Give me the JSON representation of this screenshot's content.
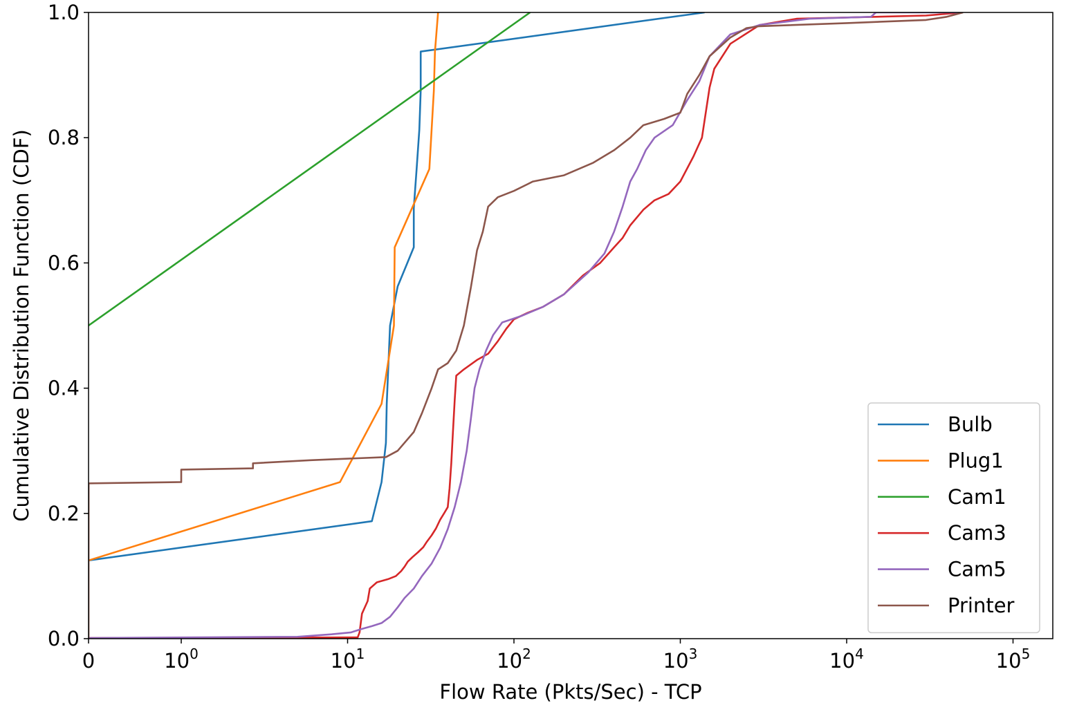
{
  "chart_data": {
    "type": "line",
    "subtype": "cdf",
    "xlabel": "Flow Rate (Pkts/Sec) - TCP",
    "ylabel": "Cumulative Distribution Function (CDF)",
    "xscale": "symlog",
    "xlim": [
      0,
      100000
    ],
    "ylim": [
      0,
      1.0
    ],
    "xticks": [
      {
        "value": 0,
        "base": "0",
        "exp": ""
      },
      {
        "value": 1,
        "base": "10",
        "exp": "0"
      },
      {
        "value": 10,
        "base": "10",
        "exp": "1"
      },
      {
        "value": 100,
        "base": "10",
        "exp": "2"
      },
      {
        "value": 1000,
        "base": "10",
        "exp": "3"
      },
      {
        "value": 10000,
        "base": "10",
        "exp": "4"
      },
      {
        "value": 100000,
        "base": "10",
        "exp": "5"
      }
    ],
    "yticks": [
      {
        "value": 0.0,
        "label": "0.0"
      },
      {
        "value": 0.2,
        "label": "0.2"
      },
      {
        "value": 0.4,
        "label": "0.4"
      },
      {
        "value": 0.6,
        "label": "0.6"
      },
      {
        "value": 0.8,
        "label": "0.8"
      },
      {
        "value": 1.0,
        "label": "1.0"
      }
    ],
    "grid": false,
    "legend_position": "lower-right",
    "series": [
      {
        "name": "Bulb",
        "color": "#1f77b4",
        "points": [
          [
            0,
            0.125
          ],
          [
            14,
            0.1875
          ],
          [
            16,
            0.25
          ],
          [
            17,
            0.3125
          ],
          [
            17.2,
            0.375
          ],
          [
            17.6,
            0.4375
          ],
          [
            18,
            0.5
          ],
          [
            20,
            0.5625
          ],
          [
            25,
            0.625
          ],
          [
            25,
            0.6875
          ],
          [
            26,
            0.75
          ],
          [
            27,
            0.8125
          ],
          [
            27.5,
            0.875
          ],
          [
            27.5,
            0.9375
          ],
          [
            1400,
            1.0
          ]
        ]
      },
      {
        "name": "Plug1",
        "color": "#ff7f0e",
        "points": [
          [
            0,
            0.125
          ],
          [
            9,
            0.25
          ],
          [
            16,
            0.375
          ],
          [
            19,
            0.5
          ],
          [
            19.2,
            0.625
          ],
          [
            31,
            0.75
          ],
          [
            33,
            0.875
          ],
          [
            33.5,
            0.9375
          ],
          [
            35,
            1.0
          ]
        ]
      },
      {
        "name": "Cam1",
        "color": "#2ca02c",
        "points": [
          [
            0,
            0.5
          ],
          [
            125,
            1.0
          ]
        ]
      },
      {
        "name": "Cam3",
        "color": "#d62728",
        "points": [
          [
            0,
            0.001
          ],
          [
            11.5,
            0.002
          ],
          [
            11.8,
            0.01
          ],
          [
            12.2,
            0.04
          ],
          [
            13.2,
            0.06
          ],
          [
            13.6,
            0.08
          ],
          [
            15,
            0.09
          ],
          [
            17.5,
            0.095
          ],
          [
            19.5,
            0.1
          ],
          [
            21,
            0.108
          ],
          [
            22,
            0.115
          ],
          [
            23,
            0.123
          ],
          [
            24.5,
            0.13
          ],
          [
            26.5,
            0.138
          ],
          [
            28.5,
            0.146
          ],
          [
            30,
            0.155
          ],
          [
            32,
            0.165
          ],
          [
            34,
            0.176
          ],
          [
            36,
            0.19
          ],
          [
            38,
            0.2
          ],
          [
            40,
            0.21
          ],
          [
            41,
            0.24
          ],
          [
            42,
            0.28
          ],
          [
            43,
            0.33
          ],
          [
            44,
            0.38
          ],
          [
            45,
            0.42
          ],
          [
            50,
            0.43
          ],
          [
            60,
            0.445
          ],
          [
            70,
            0.455
          ],
          [
            80,
            0.475
          ],
          [
            90,
            0.495
          ],
          [
            100,
            0.51
          ],
          [
            120,
            0.52
          ],
          [
            150,
            0.53
          ],
          [
            200,
            0.55
          ],
          [
            260,
            0.58
          ],
          [
            330,
            0.6
          ],
          [
            400,
            0.625
          ],
          [
            450,
            0.64
          ],
          [
            500,
            0.66
          ],
          [
            600,
            0.685
          ],
          [
            700,
            0.7
          ],
          [
            850,
            0.71
          ],
          [
            1000,
            0.73
          ],
          [
            1200,
            0.77
          ],
          [
            1350,
            0.8
          ],
          [
            1500,
            0.88
          ],
          [
            1600,
            0.91
          ],
          [
            2000,
            0.95
          ],
          [
            3000,
            0.98
          ],
          [
            5000,
            0.99
          ],
          [
            15000,
            0.993
          ],
          [
            30000,
            0.995
          ],
          [
            50000,
            1.0
          ]
        ]
      },
      {
        "name": "Cam5",
        "color": "#9467bd",
        "points": [
          [
            0,
            0.001
          ],
          [
            5,
            0.003
          ],
          [
            8,
            0.007
          ],
          [
            10.5,
            0.01
          ],
          [
            12,
            0.015
          ],
          [
            14,
            0.02
          ],
          [
            16,
            0.025
          ],
          [
            18,
            0.035
          ],
          [
            20,
            0.05
          ],
          [
            22,
            0.065
          ],
          [
            25,
            0.08
          ],
          [
            28,
            0.1
          ],
          [
            32,
            0.12
          ],
          [
            36,
            0.145
          ],
          [
            40,
            0.175
          ],
          [
            44,
            0.21
          ],
          [
            48,
            0.25
          ],
          [
            52,
            0.3
          ],
          [
            55,
            0.35
          ],
          [
            58,
            0.4
          ],
          [
            62,
            0.43
          ],
          [
            68,
            0.46
          ],
          [
            75,
            0.485
          ],
          [
            85,
            0.505
          ],
          [
            110,
            0.515
          ],
          [
            150,
            0.53
          ],
          [
            200,
            0.55
          ],
          [
            280,
            0.585
          ],
          [
            350,
            0.615
          ],
          [
            400,
            0.65
          ],
          [
            450,
            0.69
          ],
          [
            500,
            0.73
          ],
          [
            550,
            0.75
          ],
          [
            620,
            0.78
          ],
          [
            700,
            0.8
          ],
          [
            900,
            0.82
          ],
          [
            1100,
            0.86
          ],
          [
            1300,
            0.89
          ],
          [
            1500,
            0.93
          ],
          [
            2000,
            0.965
          ],
          [
            3000,
            0.98
          ],
          [
            6000,
            0.99
          ],
          [
            14000,
            0.993
          ],
          [
            15000,
            1.0
          ],
          [
            50000,
            1.0
          ]
        ]
      },
      {
        "name": "Printer",
        "color": "#8c564b",
        "points": [
          [
            0,
            0.0
          ],
          [
            0.001,
            0.248
          ],
          [
            1,
            0.25
          ],
          [
            1,
            0.27
          ],
          [
            2.7,
            0.272
          ],
          [
            2.7,
            0.28
          ],
          [
            6,
            0.285
          ],
          [
            17,
            0.29
          ],
          [
            20,
            0.3
          ],
          [
            25,
            0.33
          ],
          [
            28,
            0.36
          ],
          [
            32,
            0.4
          ],
          [
            35,
            0.43
          ],
          [
            40,
            0.44
          ],
          [
            45,
            0.46
          ],
          [
            50,
            0.5
          ],
          [
            55,
            0.56
          ],
          [
            60,
            0.62
          ],
          [
            65,
            0.65
          ],
          [
            70,
            0.69
          ],
          [
            80,
            0.705
          ],
          [
            100,
            0.715
          ],
          [
            130,
            0.73
          ],
          [
            200,
            0.74
          ],
          [
            300,
            0.76
          ],
          [
            400,
            0.78
          ],
          [
            500,
            0.8
          ],
          [
            600,
            0.82
          ],
          [
            800,
            0.83
          ],
          [
            1000,
            0.84
          ],
          [
            1100,
            0.87
          ],
          [
            1300,
            0.9
          ],
          [
            1500,
            0.93
          ],
          [
            2000,
            0.96
          ],
          [
            2500,
            0.975
          ],
          [
            3000,
            0.978
          ],
          [
            10000,
            0.983
          ],
          [
            30000,
            0.988
          ],
          [
            40000,
            0.993
          ],
          [
            50000,
            1.0
          ]
        ]
      }
    ]
  }
}
